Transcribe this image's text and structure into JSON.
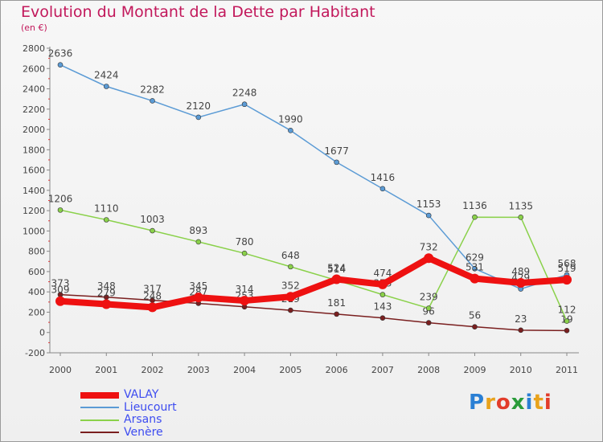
{
  "title": "Evolution du Montant de la Dette par Habitant",
  "subtitle": "(en €)",
  "logo": {
    "text": "Proxiti",
    "colors": [
      "#2a7fd4",
      "#e8a21c",
      "#e23c2a",
      "#2a9b3a",
      "#2a7fd4",
      "#e8a21c",
      "#e23c2a"
    ]
  },
  "chart_data": {
    "type": "line",
    "x": [
      "2000",
      "2001",
      "2002",
      "2003",
      "2004",
      "2005",
      "2006",
      "2007",
      "2008",
      "2009",
      "2010",
      "2011"
    ],
    "ylim": [
      -200,
      2800
    ],
    "yticks": [
      -200,
      0,
      200,
      400,
      600,
      800,
      1000,
      1200,
      1400,
      1600,
      1800,
      2000,
      2200,
      2400,
      2600,
      2800
    ],
    "grid": false,
    "legend": "bottom-left",
    "series": [
      {
        "name": "Venère",
        "color": "#7a1f1f",
        "values": [
          373,
          348,
          317,
          287,
          253,
          219,
          181,
          143,
          96,
          56,
          23,
          19
        ]
      },
      {
        "name": "Arsans",
        "color": "#8ad14a",
        "values": [
          1206,
          1110,
          1003,
          893,
          780,
          648,
          514,
          373,
          239,
          1136,
          1135,
          112
        ]
      },
      {
        "name": "Lieucourt",
        "color": "#5b9bd5",
        "values": [
          2636,
          2424,
          2282,
          2120,
          2248,
          1990,
          1677,
          1416,
          1153,
          629,
          429,
          568
        ]
      },
      {
        "name": "VALAY",
        "color": "#ee1111",
        "values": [
          309,
          279,
          248,
          345,
          314,
          352,
          524,
          474,
          732,
          531,
          489,
          519
        ]
      }
    ]
  }
}
